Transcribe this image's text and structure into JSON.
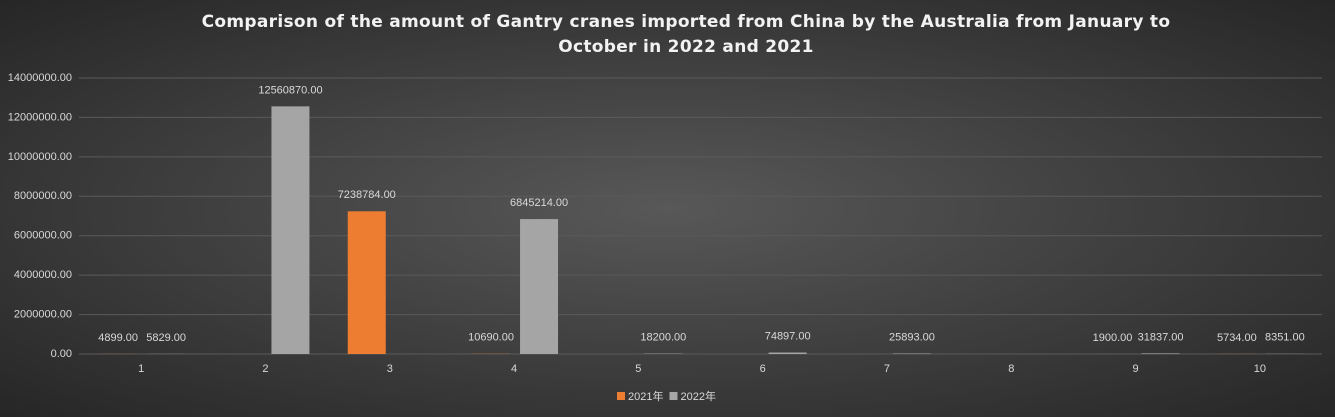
{
  "chart_data": {
    "type": "bar",
    "title": "Comparison of the amount of Gantry cranes imported from China by the Australia from January to October in 2022 and 2021",
    "categories": [
      "1",
      "2",
      "3",
      "4",
      "5",
      "6",
      "7",
      "8",
      "9",
      "10"
    ],
    "series": [
      {
        "name": "2021年",
        "color": "#ed7d31",
        "values": [
          4899,
          null,
          7238784,
          10690,
          null,
          null,
          null,
          null,
          1900,
          5734
        ],
        "value_labels": [
          "4899.00",
          null,
          "7238784.00",
          "10690.00",
          null,
          null,
          null,
          null,
          "1900.00",
          "5734.00"
        ]
      },
      {
        "name": "2022年",
        "color": "#a5a5a5",
        "values": [
          5829,
          12560870,
          null,
          6845214,
          18200,
          74897,
          25893,
          null,
          31837,
          8351
        ],
        "value_labels": [
          "5829.00",
          "12560870.00",
          null,
          "6845214.00",
          "18200.00",
          "74897.00",
          "25893.00",
          null,
          "31837.00",
          "8351.00"
        ]
      }
    ],
    "ylim": [
      0,
      14000000
    ],
    "yticks": [
      {
        "value": 0,
        "label": "0.00"
      },
      {
        "value": 2000000,
        "label": "2000000.00"
      },
      {
        "value": 4000000,
        "label": "4000000.00"
      },
      {
        "value": 6000000,
        "label": "6000000.00"
      },
      {
        "value": 8000000,
        "label": "8000000.00"
      },
      {
        "value": 10000000,
        "label": "10000000.00"
      },
      {
        "value": 12000000,
        "label": "12000000.00"
      },
      {
        "value": 14000000,
        "label": "14000000.00"
      }
    ],
    "grid": true,
    "legend": "bottom"
  }
}
